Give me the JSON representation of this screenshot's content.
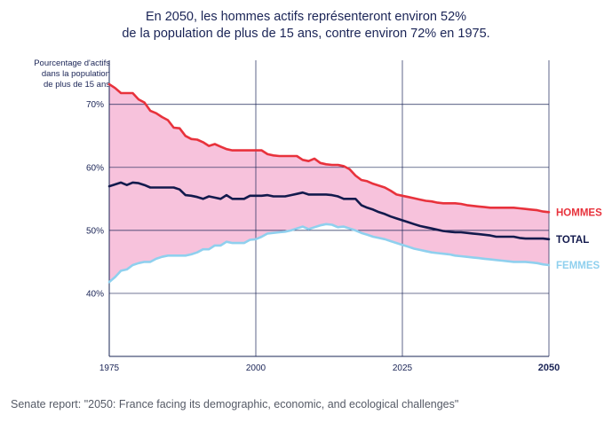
{
  "title": {
    "line1": "En 2050, les hommes actifs représenteront environ 52%",
    "line2": "de la population de plus de 15 ans, contre environ 72% en 1975."
  },
  "caption": "Senate report: \"2050: France facing its demographic, economic, and ecological challenges\"",
  "chart_data": {
    "type": "line",
    "title": "En 2050, les hommes actifs représenteront environ 52% de la population de plus de 15 ans, contre environ 72% en 1975.",
    "ylabel_lines": [
      "Pourcentage d'actifs",
      "dans la population",
      "de plus de 15 ans"
    ],
    "xlabel": "",
    "xlim": [
      1975,
      2050
    ],
    "ylim": [
      30,
      77
    ],
    "x_ticks": [
      1975,
      2000,
      2025,
      2050
    ],
    "x_tick_labels": [
      "1975",
      "2000",
      "2025",
      "2050"
    ],
    "y_ticks": [
      40,
      50,
      60,
      70
    ],
    "y_tick_labels": [
      "40%",
      "50%",
      "60%",
      "70%"
    ],
    "grid": true,
    "shaded_band": {
      "between": [
        "HOMMES",
        "FEMMES"
      ],
      "color": "#f7c2dc"
    },
    "x": [
      1975,
      1976,
      1977,
      1978,
      1979,
      1980,
      1981,
      1982,
      1983,
      1984,
      1985,
      1986,
      1987,
      1988,
      1989,
      1990,
      1991,
      1992,
      1993,
      1994,
      1995,
      1996,
      1997,
      1998,
      1999,
      2000,
      2001,
      2002,
      2003,
      2004,
      2005,
      2006,
      2007,
      2008,
      2009,
      2010,
      2011,
      2012,
      2013,
      2014,
      2015,
      2016,
      2017,
      2018,
      2019,
      2020,
      2021,
      2022,
      2023,
      2024,
      2025,
      2026,
      2027,
      2028,
      2029,
      2030,
      2031,
      2032,
      2033,
      2034,
      2035,
      2036,
      2037,
      2038,
      2039,
      2040,
      2041,
      2042,
      2043,
      2044,
      2045,
      2046,
      2047,
      2048,
      2049,
      2050
    ],
    "series": [
      {
        "name": "HOMMES",
        "color": "#e8323c",
        "values": [
          73.2,
          72.6,
          71.8,
          71.8,
          71.8,
          70.8,
          70.3,
          69.0,
          68.6,
          68.0,
          67.5,
          66.3,
          66.2,
          65.0,
          64.5,
          64.4,
          64.0,
          63.4,
          63.7,
          63.3,
          62.9,
          62.7,
          62.7,
          62.7,
          62.7,
          62.7,
          62.7,
          62.1,
          61.9,
          61.8,
          61.8,
          61.8,
          61.8,
          61.2,
          61.0,
          61.4,
          60.7,
          60.5,
          60.4,
          60.4,
          60.2,
          59.7,
          58.7,
          58.0,
          57.8,
          57.4,
          57.1,
          56.8,
          56.3,
          55.7,
          55.5,
          55.3,
          55.1,
          54.9,
          54.7,
          54.6,
          54.4,
          54.3,
          54.3,
          54.3,
          54.2,
          54.0,
          53.9,
          53.8,
          53.7,
          53.6,
          53.6,
          53.6,
          53.6,
          53.6,
          53.5,
          53.4,
          53.3,
          53.2,
          53.0,
          52.9
        ]
      },
      {
        "name": "TOTAL",
        "color": "#131a4d",
        "values": [
          57.0,
          57.3,
          57.6,
          57.2,
          57.6,
          57.5,
          57.2,
          56.8,
          56.8,
          56.8,
          56.8,
          56.8,
          56.5,
          55.6,
          55.5,
          55.3,
          55.0,
          55.4,
          55.2,
          55.0,
          55.6,
          55.0,
          55.0,
          55.0,
          55.5,
          55.5,
          55.5,
          55.6,
          55.4,
          55.4,
          55.4,
          55.6,
          55.8,
          56.0,
          55.7,
          55.7,
          55.7,
          55.7,
          55.6,
          55.4,
          55.0,
          55.0,
          55.0,
          54.0,
          53.6,
          53.3,
          52.9,
          52.6,
          52.2,
          51.9,
          51.6,
          51.3,
          51.0,
          50.7,
          50.5,
          50.3,
          50.1,
          49.9,
          49.8,
          49.7,
          49.7,
          49.6,
          49.5,
          49.4,
          49.3,
          49.2,
          49.0,
          49.0,
          49.0,
          49.0,
          48.8,
          48.7,
          48.7,
          48.7,
          48.7,
          48.6
        ]
      },
      {
        "name": "FEMMES",
        "color": "#8fd0ee",
        "values": [
          41.8,
          42.6,
          43.6,
          43.8,
          44.5,
          44.8,
          45.0,
          45.0,
          45.5,
          45.8,
          46.0,
          46.0,
          46.0,
          46.0,
          46.2,
          46.5,
          47.0,
          47.0,
          47.6,
          47.6,
          48.2,
          48.0,
          48.0,
          48.0,
          48.5,
          48.6,
          49.0,
          49.5,
          49.6,
          49.7,
          49.8,
          50.0,
          50.3,
          50.6,
          50.2,
          50.5,
          50.8,
          51.0,
          50.9,
          50.5,
          50.6,
          50.3,
          50.0,
          49.6,
          49.3,
          49.0,
          48.8,
          48.6,
          48.3,
          48.0,
          47.7,
          47.4,
          47.1,
          46.9,
          46.7,
          46.5,
          46.4,
          46.3,
          46.2,
          46.0,
          45.9,
          45.8,
          45.7,
          45.6,
          45.5,
          45.4,
          45.3,
          45.2,
          45.1,
          45.0,
          45.0,
          45.0,
          44.9,
          44.8,
          44.6,
          44.5
        ]
      }
    ]
  }
}
